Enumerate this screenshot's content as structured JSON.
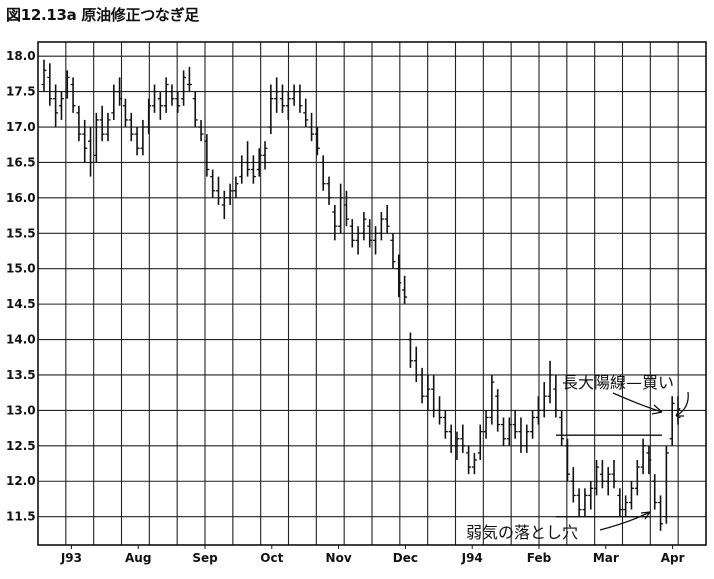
{
  "chart_data": {
    "type": "bar",
    "subtype": "ohlc-price-bars",
    "title": "図12.13a 原油修正つなぎ足",
    "xlabel": "",
    "ylabel": "",
    "ylim": [
      11.1,
      18.2
    ],
    "y_ticks": [
      "18.0",
      "17.5",
      "17.0",
      "16.5",
      "16.0",
      "15.5",
      "15.0",
      "14.5",
      "14.0",
      "13.5",
      "13.0",
      "12.5",
      "12.0",
      "11.5"
    ],
    "y_tick_values": [
      18.0,
      17.5,
      17.0,
      16.5,
      16.0,
      15.5,
      15.0,
      14.5,
      14.0,
      13.5,
      13.0,
      12.5,
      12.0,
      11.5
    ],
    "x_ticks": [
      "J93",
      "Aug",
      "Sep",
      "Oct",
      "Nov",
      "Dec",
      "J94",
      "Feb",
      "Mar",
      "Apr"
    ],
    "grid": true,
    "series": [
      {
        "values": [
          [
            17.6,
            17.95,
            17.5,
            17.8
          ],
          [
            17.7,
            17.9,
            17.3,
            17.4
          ],
          [
            17.4,
            17.6,
            17.0,
            17.2
          ],
          [
            17.3,
            17.5,
            17.1,
            17.4
          ],
          [
            17.5,
            17.8,
            17.4,
            17.7
          ],
          [
            17.6,
            17.7,
            17.2,
            17.3
          ],
          [
            17.2,
            17.3,
            16.8,
            16.9
          ],
          [
            16.9,
            17.1,
            16.5,
            16.7
          ],
          [
            16.8,
            17.0,
            16.3,
            16.5
          ],
          [
            16.6,
            17.2,
            16.5,
            17.1
          ],
          [
            17.1,
            17.3,
            16.8,
            16.9
          ],
          [
            16.9,
            17.2,
            16.8,
            17.1
          ],
          [
            17.2,
            17.6,
            17.1,
            17.5
          ],
          [
            17.5,
            17.7,
            17.3,
            17.4
          ],
          [
            17.3,
            17.4,
            17.0,
            17.1
          ],
          [
            17.1,
            17.2,
            16.8,
            16.9
          ],
          [
            16.9,
            17.0,
            16.6,
            16.7
          ],
          [
            16.7,
            17.1,
            16.6,
            17.0
          ],
          [
            17.0,
            17.4,
            16.9,
            17.3
          ],
          [
            17.3,
            17.6,
            17.2,
            17.5
          ],
          [
            17.4,
            17.5,
            17.1,
            17.3
          ],
          [
            17.3,
            17.7,
            17.2,
            17.6
          ],
          [
            17.5,
            17.6,
            17.3,
            17.4
          ],
          [
            17.4,
            17.5,
            17.2,
            17.3
          ],
          [
            17.4,
            17.8,
            17.3,
            17.7
          ],
          [
            17.6,
            17.85,
            17.5,
            17.6
          ],
          [
            17.4,
            17.5,
            17.0,
            17.1
          ],
          [
            17.0,
            17.1,
            16.8,
            16.9
          ],
          [
            16.8,
            16.9,
            16.3,
            16.4
          ],
          [
            16.3,
            16.4,
            16.0,
            16.1
          ],
          [
            16.1,
            16.3,
            15.9,
            16.0
          ],
          [
            15.9,
            16.1,
            15.7,
            16.0
          ],
          [
            16.0,
            16.2,
            15.9,
            16.1
          ],
          [
            16.1,
            16.3,
            16.0,
            16.2
          ],
          [
            16.3,
            16.6,
            16.2,
            16.5
          ],
          [
            16.5,
            16.8,
            16.3,
            16.4
          ],
          [
            16.4,
            16.6,
            16.2,
            16.3
          ],
          [
            16.4,
            16.7,
            16.3,
            16.6
          ],
          [
            16.6,
            16.8,
            16.4,
            16.7
          ],
          [
            17.0,
            17.6,
            16.9,
            17.4
          ],
          [
            17.4,
            17.7,
            17.2,
            17.5
          ],
          [
            17.4,
            17.6,
            17.2,
            17.3
          ],
          [
            17.3,
            17.5,
            17.1,
            17.4
          ],
          [
            17.4,
            17.6,
            17.3,
            17.5
          ],
          [
            17.5,
            17.6,
            17.2,
            17.3
          ],
          [
            17.2,
            17.4,
            17.0,
            17.1
          ],
          [
            17.0,
            17.2,
            16.8,
            16.9
          ],
          [
            16.9,
            17.0,
            16.6,
            16.7
          ],
          [
            16.5,
            16.6,
            16.1,
            16.2
          ],
          [
            16.2,
            16.3,
            15.9,
            16.0
          ],
          [
            15.8,
            15.9,
            15.4,
            15.6
          ],
          [
            15.6,
            16.2,
            15.5,
            16.0
          ],
          [
            15.9,
            16.1,
            15.6,
            15.7
          ],
          [
            15.6,
            15.7,
            15.3,
            15.4
          ],
          [
            15.4,
            15.6,
            15.2,
            15.5
          ],
          [
            15.5,
            15.8,
            15.4,
            15.7
          ],
          [
            15.6,
            15.7,
            15.3,
            15.4
          ],
          [
            15.4,
            15.6,
            15.2,
            15.5
          ],
          [
            15.5,
            15.8,
            15.4,
            15.7
          ],
          [
            15.7,
            15.9,
            15.5,
            15.6
          ],
          [
            15.4,
            15.5,
            15.0,
            15.1
          ],
          [
            15.0,
            15.2,
            14.6,
            14.8
          ],
          [
            14.7,
            14.9,
            14.5,
            14.6
          ],
          [
            14.0,
            14.1,
            13.6,
            13.7
          ],
          [
            13.7,
            13.9,
            13.4,
            13.5
          ],
          [
            13.5,
            13.6,
            13.1,
            13.2
          ],
          [
            13.2,
            13.5,
            13.0,
            13.3
          ],
          [
            13.3,
            13.5,
            12.9,
            13.0
          ],
          [
            13.0,
            13.2,
            12.8,
            12.9
          ],
          [
            12.9,
            13.0,
            12.6,
            12.7
          ],
          [
            12.7,
            12.8,
            12.4,
            12.5
          ],
          [
            12.5,
            12.7,
            12.3,
            12.6
          ],
          [
            12.6,
            12.8,
            12.4,
            12.5
          ],
          [
            12.4,
            12.5,
            12.1,
            12.2
          ],
          [
            12.2,
            12.4,
            12.1,
            12.3
          ],
          [
            12.4,
            12.8,
            12.3,
            12.7
          ],
          [
            12.7,
            13.0,
            12.6,
            12.9
          ],
          [
            12.9,
            13.5,
            12.8,
            13.4
          ],
          [
            13.2,
            13.3,
            12.7,
            12.8
          ],
          [
            12.8,
            12.9,
            12.5,
            12.6
          ],
          [
            12.6,
            12.9,
            12.5,
            12.8
          ],
          [
            12.8,
            13.0,
            12.6,
            12.7
          ],
          [
            12.7,
            12.9,
            12.4,
            12.5
          ],
          [
            12.5,
            12.8,
            12.4,
            12.7
          ],
          [
            12.7,
            13.0,
            12.6,
            12.9
          ],
          [
            12.9,
            13.2,
            12.8,
            13.0
          ],
          [
            13.0,
            13.4,
            12.9,
            13.2
          ],
          [
            13.2,
            13.7,
            13.1,
            13.5
          ],
          [
            13.3,
            13.5,
            12.9,
            13.0
          ],
          [
            12.9,
            13.0,
            12.5,
            12.6
          ],
          [
            12.5,
            12.6,
            12.0,
            12.1
          ],
          [
            12.0,
            12.2,
            11.7,
            11.8
          ],
          [
            11.8,
            11.9,
            11.5,
            11.6
          ],
          [
            11.6,
            11.9,
            11.5,
            11.8
          ],
          [
            11.8,
            12.0,
            11.6,
            11.9
          ],
          [
            11.9,
            12.3,
            11.8,
            12.2
          ],
          [
            12.1,
            12.3,
            11.9,
            12.0
          ],
          [
            12.0,
            12.2,
            11.8,
            12.1
          ],
          [
            12.1,
            12.3,
            11.9,
            12.0
          ],
          [
            11.8,
            11.9,
            11.5,
            11.6
          ],
          [
            11.6,
            11.8,
            11.5,
            11.7
          ],
          [
            11.7,
            12.0,
            11.6,
            11.9
          ],
          [
            11.9,
            12.3,
            11.8,
            12.2
          ],
          [
            12.2,
            12.6,
            12.1,
            12.5
          ],
          [
            12.4,
            12.5,
            12.1,
            12.3
          ],
          [
            12.0,
            12.1,
            11.6,
            11.7
          ],
          [
            11.7,
            11.8,
            11.3,
            11.4
          ],
          [
            11.5,
            12.5,
            11.4,
            12.4
          ],
          [
            12.6,
            13.2,
            12.5,
            13.1
          ],
          [
            13.0,
            13.2,
            12.8,
            12.9
          ]
        ]
      }
    ],
    "annotations": [
      {
        "text": "長大陽線",
        "connector": "—",
        "text2": "買い"
      },
      {
        "text": "弱気の落とし穴"
      }
    ],
    "guide_levels": [
      12.65,
      11.5
    ]
  }
}
